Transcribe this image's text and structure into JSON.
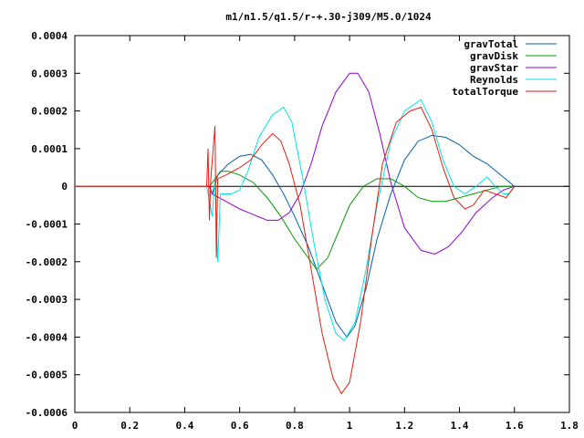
{
  "chart_data": {
    "type": "line",
    "title": "m1/n1.5/q1.5/r-+.30-j309/M5.0/1024",
    "xlabel": "",
    "ylabel": "",
    "xlim": [
      0,
      1.8
    ],
    "ylim": [
      -0.0006,
      0.0004
    ],
    "grid": false,
    "legend_position": "top-right",
    "x_ticks": [
      "0",
      "0.2",
      "0.4",
      "0.6",
      "0.8",
      "1",
      "1.2",
      "1.4",
      "1.6",
      "1.8"
    ],
    "x_tick_values": [
      0,
      0.2,
      0.4,
      0.6,
      0.8,
      1.0,
      1.2,
      1.4,
      1.6,
      1.8
    ],
    "y_ticks": [
      "0.0004",
      "0.0003",
      "0.0002",
      "0.0001",
      "0",
      "-0.0001",
      "-0.0002",
      "-0.0003",
      "-0.0004",
      "-0.0005",
      "-0.0006"
    ],
    "y_tick_values": [
      0.0004,
      0.0003,
      0.0002,
      0.0001,
      0,
      -0.0001,
      -0.0002,
      -0.0003,
      -0.0004,
      -0.0005,
      -0.0006
    ],
    "series": [
      {
        "name": "gravTotal",
        "color": "#0060ad",
        "points": [
          [
            0,
            0
          ],
          [
            0.49,
            0
          ],
          [
            0.5,
            -2e-05
          ],
          [
            0.52,
            3e-05
          ],
          [
            0.56,
            6e-05
          ],
          [
            0.6,
            8e-05
          ],
          [
            0.64,
            8.5e-05
          ],
          [
            0.68,
            7e-05
          ],
          [
            0.72,
            3e-05
          ],
          [
            0.76,
            -2e-05
          ],
          [
            0.8,
            -8e-05
          ],
          [
            0.85,
            -0.00016
          ],
          [
            0.9,
            -0.00026
          ],
          [
            0.95,
            -0.00036
          ],
          [
            0.99,
            -0.0004
          ],
          [
            1.02,
            -0.00037
          ],
          [
            1.06,
            -0.00027
          ],
          [
            1.1,
            -0.00014
          ],
          [
            1.15,
            -2e-05
          ],
          [
            1.2,
            7e-05
          ],
          [
            1.25,
            0.00012
          ],
          [
            1.3,
            0.000135
          ],
          [
            1.35,
            0.00013
          ],
          [
            1.4,
            0.00011
          ],
          [
            1.45,
            8e-05
          ],
          [
            1.5,
            6e-05
          ],
          [
            1.55,
            3e-05
          ],
          [
            1.6,
            0.0
          ]
        ]
      },
      {
        "name": "gravDisk",
        "color": "#009e00",
        "points": [
          [
            0,
            0
          ],
          [
            0.49,
            0
          ],
          [
            0.5,
            1e-05
          ],
          [
            0.53,
            4e-05
          ],
          [
            0.56,
            4e-05
          ],
          [
            0.6,
            3e-05
          ],
          [
            0.65,
            1e-05
          ],
          [
            0.7,
            -3e-05
          ],
          [
            0.75,
            -8e-05
          ],
          [
            0.8,
            -0.00014
          ],
          [
            0.85,
            -0.00019
          ],
          [
            0.88,
            -0.00022
          ],
          [
            0.92,
            -0.00019
          ],
          [
            0.96,
            -0.00012
          ],
          [
            1.0,
            -5e-05
          ],
          [
            1.05,
            0.0
          ],
          [
            1.1,
            2e-05
          ],
          [
            1.15,
            2e-05
          ],
          [
            1.2,
            0.0
          ],
          [
            1.25,
            -3e-05
          ],
          [
            1.3,
            -4e-05
          ],
          [
            1.35,
            -4e-05
          ],
          [
            1.4,
            -3e-05
          ],
          [
            1.45,
            -2e-05
          ],
          [
            1.5,
            -1e-05
          ],
          [
            1.55,
            0.0
          ],
          [
            1.6,
            0.0
          ]
        ]
      },
      {
        "name": "gravStar",
        "color": "#9400d3",
        "points": [
          [
            0,
            0
          ],
          [
            0.49,
            0
          ],
          [
            0.5,
            -2e-05
          ],
          [
            0.55,
            -4e-05
          ],
          [
            0.6,
            -6e-05
          ],
          [
            0.65,
            -7.5e-05
          ],
          [
            0.7,
            -9e-05
          ],
          [
            0.74,
            -9e-05
          ],
          [
            0.78,
            -7e-05
          ],
          [
            0.82,
            -2e-05
          ],
          [
            0.86,
            6e-05
          ],
          [
            0.9,
            0.00016
          ],
          [
            0.95,
            0.00025
          ],
          [
            1.0,
            0.0003
          ],
          [
            1.03,
            0.0003
          ],
          [
            1.07,
            0.00025
          ],
          [
            1.11,
            0.00014
          ],
          [
            1.15,
            1e-05
          ],
          [
            1.2,
            -0.00011
          ],
          [
            1.26,
            -0.00017
          ],
          [
            1.31,
            -0.00018
          ],
          [
            1.36,
            -0.00016
          ],
          [
            1.41,
            -0.00012
          ],
          [
            1.46,
            -7e-05
          ],
          [
            1.52,
            -3e-05
          ],
          [
            1.56,
            -1e-05
          ],
          [
            1.6,
            0.0
          ]
        ]
      },
      {
        "name": "Reynolds",
        "color": "#00e5e5",
        "points": [
          [
            0,
            0
          ],
          [
            0.48,
            0
          ],
          [
            0.5,
            -8e-05
          ],
          [
            0.51,
            2e-05
          ],
          [
            0.52,
            -0.0002
          ],
          [
            0.53,
            -2e-05
          ],
          [
            0.57,
            -2e-05
          ],
          [
            0.6,
            -1e-05
          ],
          [
            0.63,
            4e-05
          ],
          [
            0.67,
            0.00013
          ],
          [
            0.72,
            0.00019
          ],
          [
            0.76,
            0.00021
          ],
          [
            0.79,
            0.00017
          ],
          [
            0.83,
            2e-05
          ],
          [
            0.87,
            -0.00015
          ],
          [
            0.91,
            -0.0003
          ],
          [
            0.95,
            -0.00039
          ],
          [
            0.98,
            -0.00041
          ],
          [
            1.02,
            -0.00036
          ],
          [
            1.06,
            -0.00022
          ],
          [
            1.1,
            -5e-05
          ],
          [
            1.15,
            0.00012
          ],
          [
            1.2,
            0.0002
          ],
          [
            1.26,
            0.00023
          ],
          [
            1.3,
            0.00017
          ],
          [
            1.34,
            7e-05
          ],
          [
            1.38,
            0.0
          ],
          [
            1.42,
            -2e-05
          ],
          [
            1.46,
            0.0
          ],
          [
            1.5,
            2.5e-05
          ],
          [
            1.53,
            0.0
          ],
          [
            1.56,
            -2e-05
          ],
          [
            1.58,
            -2e-05
          ],
          [
            1.6,
            0.0
          ]
        ]
      },
      {
        "name": "totalTorque",
        "color": "#e51e10",
        "points": [
          [
            0,
            0
          ],
          [
            0.48,
            0
          ],
          [
            0.485,
            0.0001
          ],
          [
            0.49,
            -9e-05
          ],
          [
            0.495,
            2e-05
          ],
          [
            0.51,
            0.00016
          ],
          [
            0.515,
            -0.00019
          ],
          [
            0.52,
            2e-05
          ],
          [
            0.55,
            3e-05
          ],
          [
            0.6,
            5e-05
          ],
          [
            0.64,
            7e-05
          ],
          [
            0.68,
            0.00011
          ],
          [
            0.72,
            0.00014
          ],
          [
            0.75,
            0.00012
          ],
          [
            0.78,
            6e-05
          ],
          [
            0.82,
            -5e-05
          ],
          [
            0.86,
            -0.00022
          ],
          [
            0.9,
            -0.00039
          ],
          [
            0.94,
            -0.00051
          ],
          [
            0.97,
            -0.00055
          ],
          [
            1.0,
            -0.00052
          ],
          [
            1.04,
            -0.00036
          ],
          [
            1.08,
            -0.00014
          ],
          [
            1.12,
            6e-05
          ],
          [
            1.17,
            0.00017
          ],
          [
            1.22,
            0.0002
          ],
          [
            1.26,
            0.00021
          ],
          [
            1.3,
            0.00015
          ],
          [
            1.34,
            5e-05
          ],
          [
            1.38,
            -3e-05
          ],
          [
            1.42,
            -6e-05
          ],
          [
            1.45,
            -5e-05
          ],
          [
            1.49,
            -1e-05
          ],
          [
            1.53,
            -2e-05
          ],
          [
            1.57,
            -3e-05
          ],
          [
            1.6,
            0.0
          ]
        ]
      }
    ]
  }
}
